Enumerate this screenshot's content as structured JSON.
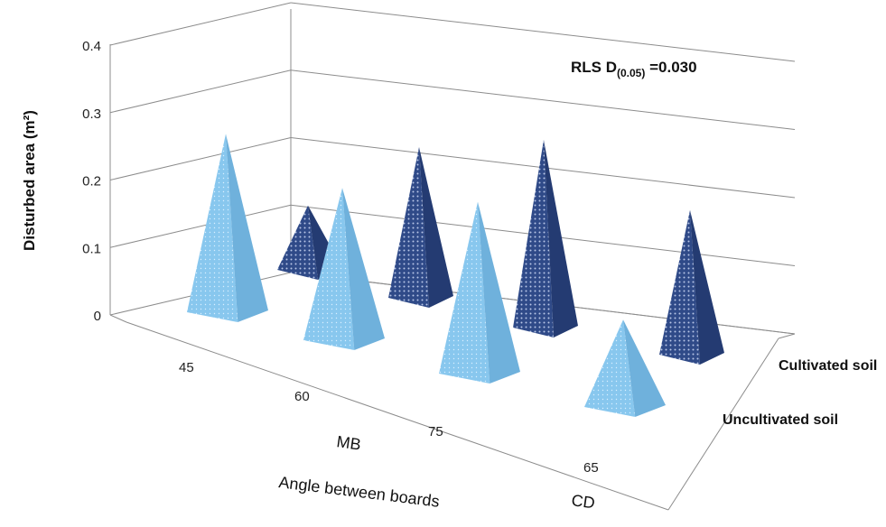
{
  "chart_data": {
    "type": "bar",
    "shape": "pyramid-3d",
    "categories": [
      "45",
      "60",
      "75",
      "65"
    ],
    "category_groups": [
      {
        "label": "MB",
        "categories": [
          "45",
          "60",
          "75"
        ]
      },
      {
        "label": "CD",
        "categories": [
          "65"
        ]
      }
    ],
    "series": [
      {
        "name": "Uncultivated soil",
        "color": "#86c5ec",
        "values": [
          0.28,
          0.24,
          0.27,
          0.14
        ]
      },
      {
        "name": "Cultivated soil",
        "color": "#2e4785",
        "values": [
          0.11,
          0.25,
          0.31,
          0.24
        ]
      }
    ],
    "title": "",
    "xlabel": "Angle between boards",
    "ylabel": "Disturbed area  (m²)",
    "ylim": [
      0,
      0.4
    ],
    "yticks": [
      "0",
      "0.1",
      "0.2",
      "0.3",
      "0.4"
    ],
    "grid": true,
    "annotation": {
      "prefix": "RLS D",
      "subscript": "(0.05)",
      "suffix": " =0.030"
    }
  }
}
